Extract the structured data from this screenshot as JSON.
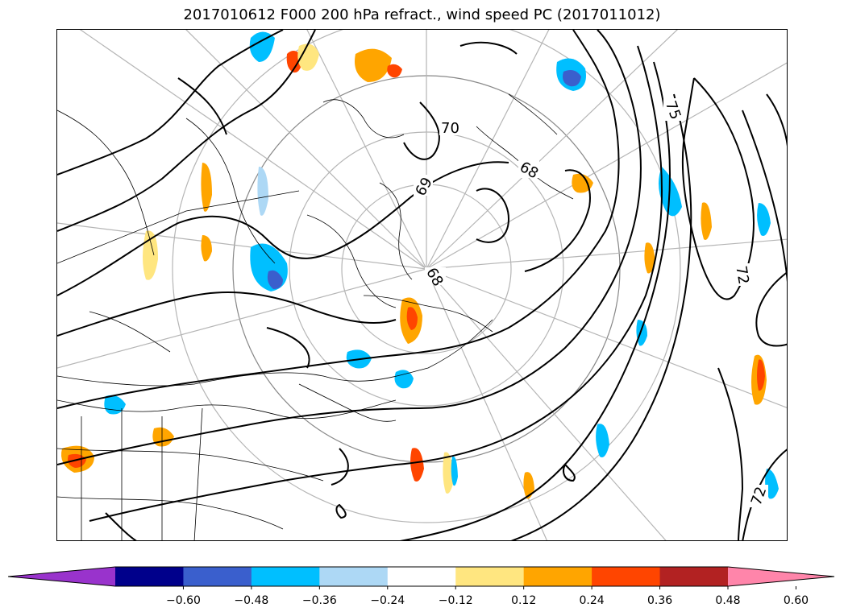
{
  "title": "2017010612 F000 200 hPa refract., wind speed PC (2017011012)",
  "contour_labels": [
    "70",
    "69",
    "68",
    "68",
    "75",
    "72",
    "72"
  ],
  "colorbar": {
    "extend": "both",
    "bins": [
      {
        "color": "#9933cc"
      },
      {
        "color": "#00008b"
      },
      {
        "color": "#3a5fcd"
      },
      {
        "color": "#00bfff"
      },
      {
        "color": "#add8f5"
      },
      {
        "color": "#ffffff"
      },
      {
        "color": "#ffe680"
      },
      {
        "color": "#ffa500"
      },
      {
        "color": "#ff4500"
      },
      {
        "color": "#b22222"
      },
      {
        "color": "#ff85aa"
      }
    ],
    "ticks": [
      "−0.60",
      "−0.48",
      "−0.36",
      "−0.24",
      "−0.12",
      "0.12",
      "0.24",
      "0.36",
      "0.48",
      "0.60"
    ]
  }
}
